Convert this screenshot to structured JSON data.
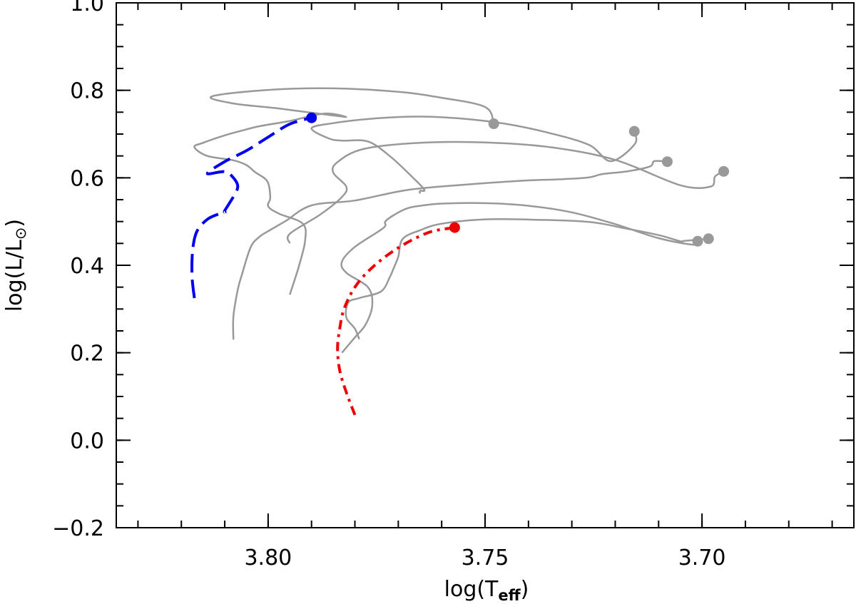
{
  "chart_data": {
    "type": "line",
    "title": "",
    "xlabel": "log(T_eff)",
    "ylabel": "log(L/L_⊙)",
    "xlim": [
      3.835,
      3.665
    ],
    "ylim": [
      -0.2,
      1.0
    ],
    "x_ticks": [
      3.8,
      3.75,
      3.7
    ],
    "x_tick_labels": [
      "3.80",
      "3.75",
      "3.70"
    ],
    "y_ticks": [
      -0.2,
      0.0,
      0.2,
      0.4,
      0.6,
      0.8,
      1.0
    ],
    "y_tick_labels": [
      "−0.2",
      "0.0",
      "0.2",
      "0.4",
      "0.6",
      "0.8",
      "1.0"
    ],
    "x_minor_step": 0.01,
    "y_minor_step": 0.05,
    "grid": false,
    "colors": {
      "grey": "#999999",
      "blue": "#0000ee",
      "red": "#ee0000"
    },
    "series": [
      {
        "color": "grey",
        "dash": "solid",
        "end_marker": true,
        "x": [
          3.795,
          3.793,
          3.7915,
          3.792,
          3.7975,
          3.8,
          3.7995,
          3.8002,
          3.803,
          3.805,
          3.808,
          3.814,
          3.817,
          3.815,
          3.81,
          3.806,
          3.802,
          3.795,
          3.787,
          3.782,
          3.787,
          3.798,
          3.808,
          3.813,
          3.8,
          3.785,
          3.77,
          3.76,
          3.75,
          3.748
        ],
        "y": [
          0.333,
          0.395,
          0.455,
          0.495,
          0.518,
          0.535,
          0.555,
          0.592,
          0.613,
          0.629,
          0.64,
          0.65,
          0.67,
          0.68,
          0.697,
          0.708,
          0.718,
          0.73,
          0.747,
          0.739,
          0.745,
          0.759,
          0.77,
          0.786,
          0.801,
          0.8045,
          0.7965,
          0.783,
          0.762,
          0.7236
        ]
      },
      {
        "color": "grey",
        "dash": "solid",
        "end_marker": true,
        "x": [
          3.808,
          3.808,
          3.807,
          3.806,
          3.804,
          3.802,
          3.8,
          3.796,
          3.79,
          3.78,
          3.768,
          3.755,
          3.742,
          3.732,
          3.726,
          3.723,
          3.717,
          3.712,
          3.711,
          3.708
        ],
        "y": [
          0.23,
          0.283,
          0.344,
          0.38,
          0.442,
          0.465,
          0.478,
          0.501,
          0.537,
          0.548,
          0.572,
          0.584,
          0.593,
          0.597,
          0.601,
          0.6085,
          0.615,
          0.626,
          0.638,
          0.6369
        ]
      },
      {
        "color": "grey",
        "dash": "solid",
        "end_marker": true,
        "x": [
          3.765,
          3.765,
          3.764,
          3.767,
          3.772,
          3.777,
          3.783,
          3.786,
          3.79,
          3.785,
          3.775,
          3.765,
          3.755,
          3.745,
          3.735,
          3.726,
          3.721,
          3.7155,
          3.7156
        ],
        "y": [
          0.564,
          0.57,
          0.573,
          0.604,
          0.65,
          0.683,
          0.685,
          0.69,
          0.713,
          0.725,
          0.736,
          0.74,
          0.735,
          0.723,
          0.702,
          0.675,
          0.638,
          0.677,
          0.7063
        ]
      },
      {
        "color": "grey",
        "dash": "solid",
        "end_marker": true,
        "x": [
          3.795,
          3.795,
          3.788,
          3.783,
          3.782,
          3.785,
          3.784,
          3.778,
          3.765,
          3.75,
          3.735,
          3.72,
          3.705,
          3.698,
          3.697,
          3.695
        ],
        "y": [
          0.45,
          0.472,
          0.516,
          0.556,
          0.58,
          0.612,
          0.636,
          0.666,
          0.68,
          0.681,
          0.67,
          0.641,
          0.583,
          0.58,
          0.603,
          0.6147
        ]
      },
      {
        "color": "grey",
        "dash": "solid",
        "end_marker": true,
        "x": [
          3.783,
          3.78,
          3.7775,
          3.776,
          3.777,
          3.782,
          3.783,
          3.78,
          3.7735,
          3.773,
          3.771,
          3.768,
          3.765,
          3.76,
          3.75,
          3.74,
          3.73,
          3.72,
          3.71,
          3.702,
          3.701
        ],
        "y": [
          0.2,
          0.235,
          0.265,
          0.309,
          0.35,
          0.383,
          0.408,
          0.442,
          0.485,
          0.5,
          0.515,
          0.53,
          0.536,
          0.541,
          0.542,
          0.536,
          0.521,
          0.494,
          0.462,
          0.447,
          0.455
        ]
      },
      {
        "color": "grey",
        "dash": "solid",
        "end_marker": true,
        "x": [
          3.779,
          3.78,
          3.782,
          3.7815,
          3.779,
          3.774,
          3.772,
          3.771,
          3.77,
          3.769,
          3.765,
          3.76,
          3.75,
          3.738,
          3.726,
          3.718,
          3.71,
          3.705,
          3.704,
          3.6985
        ],
        "y": [
          0.231,
          0.255,
          0.281,
          0.315,
          0.325,
          0.34,
          0.372,
          0.395,
          0.42,
          0.46,
          0.48,
          0.495,
          0.505,
          0.504,
          0.499,
          0.485,
          0.469,
          0.455,
          0.456,
          0.4607
        ]
      },
      {
        "color": "blue",
        "dash": "long-dash",
        "end_marker": true,
        "x": [
          3.817,
          3.8175,
          3.8175,
          3.817,
          3.816,
          3.814,
          3.812,
          3.81,
          3.81,
          3.808,
          3.807,
          3.808,
          3.81,
          3.814,
          3.81,
          3.805,
          3.8,
          3.795,
          3.79
        ],
        "y": [
          0.325,
          0.37,
          0.42,
          0.46,
          0.485,
          0.505,
          0.515,
          0.521,
          0.525,
          0.557,
          0.58,
          0.6,
          0.614,
          0.61,
          0.637,
          0.662,
          0.693,
          0.723,
          0.7371
        ]
      },
      {
        "color": "red",
        "dash": "dash-dot",
        "end_marker": true,
        "x": [
          3.78,
          3.782,
          3.7835,
          3.784,
          3.7835,
          3.7825,
          3.78,
          3.776,
          3.77,
          3.763,
          3.757
        ],
        "y": [
          0.058,
          0.11,
          0.16,
          0.21,
          0.255,
          0.3,
          0.35,
          0.395,
          0.44,
          0.475,
          0.4862
        ]
      }
    ]
  }
}
